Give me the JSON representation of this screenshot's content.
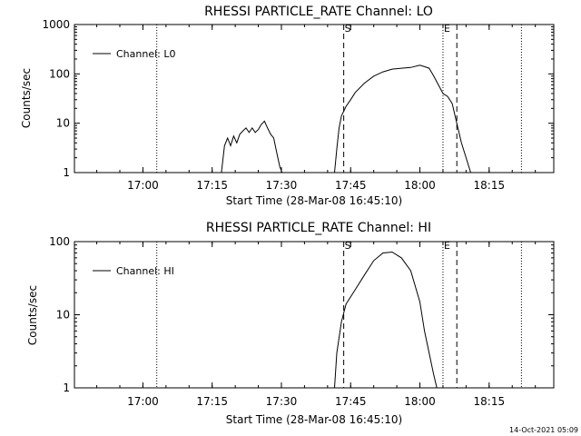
{
  "chart_data": [
    {
      "type": "line",
      "title": "RHESSI PARTICLE_RATE Channel: LO",
      "xlabel": "Start Time (28-Mar-08 16:45:10)",
      "ylabel": "Counts/sec",
      "y_scale": "log",
      "xlim": [
        "16:45:10",
        "18:29:00"
      ],
      "ylim": [
        1,
        1000
      ],
      "x_ticks": [
        "17:00",
        "17:15",
        "17:30",
        "17:45",
        "18:00",
        "18:15"
      ],
      "y_ticks": [
        "1",
        "10",
        "100",
        "1000"
      ],
      "legend": "top-left",
      "grid": false,
      "markers": [
        {
          "time": "17:03:00",
          "label": "",
          "style": "dotted"
        },
        {
          "time": "17:43:30",
          "label": "S",
          "style": "dashed"
        },
        {
          "time": "18:05:00",
          "label": "E",
          "style": "dotted"
        },
        {
          "time": "18:08:00",
          "label": "",
          "style": "dashed"
        },
        {
          "time": "18:22:00",
          "label": "",
          "style": "dotted"
        }
      ],
      "series": [
        {
          "name": "Channel: L0",
          "segments": [
            {
              "x": [
                "17:17:00",
                "17:17:40",
                "17:18:20",
                "17:19:00",
                "17:19:40",
                "17:20:20",
                "17:21:00",
                "17:21:40",
                "17:22:20",
                "17:23:00",
                "17:23:40",
                "17:24:20",
                "17:25:00",
                "17:25:40",
                "17:26:20",
                "17:27:00",
                "17:27:40",
                "17:28:20",
                "17:29:00",
                "17:29:40",
                "17:30:10"
              ],
              "y": [
                1,
                3.5,
                5,
                3.5,
                5.5,
                4,
                6,
                7,
                8,
                6.5,
                8,
                6.5,
                7.5,
                9.5,
                11,
                8,
                6,
                5,
                2.5,
                1.3,
                1
              ]
            },
            {
              "x": [
                "17:41:30",
                "17:42:00",
                "17:42:30",
                "17:43:00",
                "17:44:00",
                "17:45:00",
                "17:46:00",
                "17:48:00",
                "17:50:00",
                "17:52:00",
                "17:54:00",
                "17:56:00",
                "17:58:00",
                "18:00:00",
                "18:01:00",
                "18:02:00",
                "18:03:00",
                "18:04:00",
                "18:05:00",
                "18:06:00",
                "18:07:00",
                "18:08:00",
                "18:09:00",
                "18:10:00",
                "18:11:00"
              ],
              "y": [
                1,
                3,
                8,
                14,
                22,
                30,
                42,
                65,
                90,
                110,
                125,
                130,
                135,
                150,
                140,
                130,
                90,
                60,
                40,
                35,
                25,
                10,
                4,
                2,
                1
              ]
            }
          ]
        }
      ]
    },
    {
      "type": "line",
      "title": "RHESSI PARTICLE_RATE Channel: HI",
      "xlabel": "Start Time (28-Mar-08 16:45:10)",
      "ylabel": "Counts/sec",
      "y_scale": "log",
      "xlim": [
        "16:45:10",
        "18:29:00"
      ],
      "ylim": [
        1,
        100
      ],
      "x_ticks": [
        "17:00",
        "17:15",
        "17:30",
        "17:45",
        "18:00",
        "18:15"
      ],
      "y_ticks": [
        "1",
        "10",
        "100"
      ],
      "legend": "top-left",
      "grid": false,
      "markers": [
        {
          "time": "17:03:00",
          "label": "",
          "style": "dotted"
        },
        {
          "time": "17:43:30",
          "label": "S",
          "style": "dashed"
        },
        {
          "time": "18:05:00",
          "label": "E",
          "style": "dotted"
        },
        {
          "time": "18:08:00",
          "label": "",
          "style": "dashed"
        },
        {
          "time": "18:22:00",
          "label": "",
          "style": "dotted"
        }
      ],
      "series": [
        {
          "name": "Channel: HI",
          "segments": [
            {
              "x": [
                "17:41:30",
                "17:42:00",
                "17:43:00",
                "17:44:00",
                "17:46:00",
                "17:48:00",
                "17:50:00",
                "17:52:00",
                "17:54:00",
                "17:56:00",
                "17:58:00",
                "18:00:00",
                "18:01:00",
                "18:02:00",
                "18:03:00",
                "18:03:40"
              ],
              "y": [
                1,
                3,
                8,
                14,
                22,
                35,
                55,
                70,
                72,
                60,
                40,
                15,
                6,
                3,
                1.5,
                1
              ]
            }
          ]
        }
      ]
    }
  ],
  "panel_markers": {
    "start_label": "S",
    "end_label": "E"
  },
  "footer": {
    "timestamp": "14-Oct-2021 05:09"
  }
}
